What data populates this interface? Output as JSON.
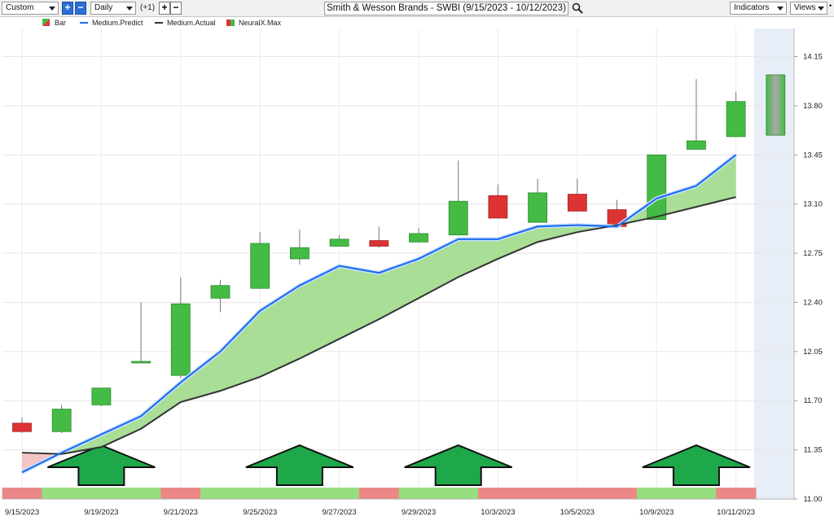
{
  "toolbar": {
    "period": "Custom",
    "interval": "Daily",
    "offset": "(+1)",
    "title": "Smith & Wesson Brands - SWBI (9/15/2023 - 10/12/2023)",
    "indicators_label": "Indicators",
    "views_label": "Views",
    "plus_icon": "plus-icon",
    "minus_icon": "minus-icon",
    "search_icon": "magnifier-icon"
  },
  "chart_data": {
    "type": "candlestick",
    "legend": [
      "Bar",
      "Medium.Predict",
      "Medium.Actual",
      "NeuralX.Max"
    ],
    "legend_placement": "top-left",
    "colors": {
      "up": "#44bb44",
      "down": "#dd3333",
      "predict": "#1e6ef0",
      "actual": "#333333",
      "fill": "#a3dc90",
      "forecast": "#e8eef8"
    },
    "ylim": [
      11.0,
      14.35
    ],
    "y_ticks": [
      "14.15",
      "13.80",
      "13.45",
      "13.10",
      "12.75",
      "12.40",
      "12.05",
      "11.70",
      "11.35",
      "11.00"
    ],
    "x_tick_labels": [
      "9/15/2023",
      "9/19/2023",
      "9/21/2023",
      "9/25/2023",
      "9/27/2023",
      "9/29/2023",
      "10/3/2023",
      "10/5/2023",
      "10/9/2023",
      "10/11/2023"
    ],
    "dates": [
      "9/15/2023",
      "9/18/2023",
      "9/19/2023",
      "9/20/2023",
      "9/21/2023",
      "9/22/2023",
      "9/25/2023",
      "9/26/2023",
      "9/27/2023",
      "9/28/2023",
      "9/29/2023",
      "10/2/2023",
      "10/3/2023",
      "10/4/2023",
      "10/5/2023",
      "10/6/2023",
      "10/9/2023",
      "10/10/2023",
      "10/11/2023"
    ],
    "ohlc": [
      [
        11.54,
        11.58,
        11.47,
        11.48
      ],
      [
        11.48,
        11.67,
        11.47,
        11.64
      ],
      [
        11.67,
        11.77,
        11.66,
        11.79
      ],
      [
        11.97,
        12.4,
        11.97,
        11.98
      ],
      [
        11.88,
        12.58,
        11.86,
        12.39
      ],
      [
        12.43,
        12.56,
        12.33,
        12.52
      ],
      [
        12.5,
        12.9,
        12.5,
        12.82
      ],
      [
        12.71,
        12.92,
        12.67,
        12.79
      ],
      [
        12.8,
        12.88,
        12.8,
        12.85
      ],
      [
        12.84,
        12.94,
        12.79,
        12.8
      ],
      [
        12.83,
        12.93,
        12.83,
        12.89
      ],
      [
        12.88,
        13.41,
        12.88,
        13.12
      ],
      [
        13.16,
        13.24,
        13.0,
        13.0
      ],
      [
        12.97,
        13.28,
        12.97,
        13.18
      ],
      [
        13.17,
        13.28,
        13.05,
        13.05
      ],
      [
        13.06,
        13.13,
        12.94,
        12.94
      ],
      [
        12.99,
        13.45,
        12.99,
        13.45
      ],
      [
        13.49,
        13.99,
        13.49,
        13.55
      ],
      [
        13.58,
        13.9,
        13.58,
        13.83
      ]
    ],
    "forecast_range": [
      13.59,
      14.02
    ],
    "medium_predict": [
      11.19,
      11.33,
      11.46,
      11.59,
      11.83,
      12.05,
      12.34,
      12.52,
      12.66,
      12.61,
      12.71,
      12.85,
      12.85,
      12.94,
      12.95,
      12.94,
      13.14,
      13.23,
      13.45
    ],
    "medium_actual": [
      11.33,
      11.32,
      11.37,
      11.5,
      11.69,
      11.77,
      11.87,
      12.0,
      12.14,
      12.28,
      12.43,
      12.58,
      12.71,
      12.83,
      12.9,
      12.95,
      13.01,
      13.08,
      13.15
    ],
    "neuralx_band": [
      "red",
      "green",
      "green",
      "green",
      "red",
      "green",
      "green",
      "green",
      "green",
      "red",
      "green",
      "green",
      "red",
      "red",
      "red",
      "red",
      "green",
      "green",
      "red"
    ],
    "up_arrow_days": [
      2,
      7,
      11,
      17
    ]
  }
}
